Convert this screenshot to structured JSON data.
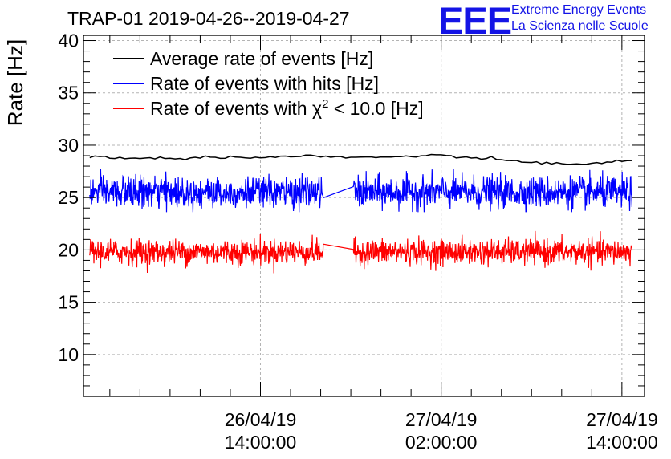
{
  "logo": {
    "acronym": "EEE",
    "line1": "Extreme Energy Events",
    "line2": "La Scienza nelle Scuole",
    "color": "#1414e6"
  },
  "chart_data": {
    "type": "line",
    "title": "TRAP-01 2019-04-26--2019-04-27",
    "ylabel": "Rate [Hz]",
    "xlabel": "",
    "ylim": [
      6,
      40.5
    ],
    "yticks": [
      10,
      15,
      20,
      25,
      30,
      35,
      40
    ],
    "x_time_range": [
      "26/04/19 02:15:00",
      "27/04/19 15:30:00"
    ],
    "xticks": [
      {
        "date": "26/04/19",
        "time": "14:00:00",
        "at": "26/04/19 14:00:00"
      },
      {
        "date": "27/04/19",
        "time": "02:00:00",
        "at": "27/04/19 02:00:00"
      },
      {
        "date": "27/04/19",
        "time": "14:00:00",
        "at": "27/04/19 14:00:00"
      }
    ],
    "grid": true,
    "legend_position": "top-left",
    "data_range": {
      "start": "26/04/19 02:40:00",
      "end": "27/04/19 14:40:00"
    },
    "gap": {
      "start": "26/04/19 18:10:00",
      "end": "26/04/19 20:10:00"
    },
    "series": [
      {
        "name": "Average rate of events [Hz]",
        "color": "#000000",
        "kind": "smooth",
        "times": [
          "26/04/19 02:40:00",
          "26/04/19 05:00:00",
          "26/04/19 08:00:00",
          "26/04/19 11:00:00",
          "26/04/19 14:00:00",
          "26/04/19 17:00:00",
          "26/04/19 20:00:00",
          "26/04/19 23:00:00",
          "27/04/19 02:00:00",
          "27/04/19 05:00:00",
          "27/04/19 08:00:00",
          "27/04/19 11:00:00",
          "27/04/19 14:40:00"
        ],
        "values": [
          28.9,
          28.8,
          28.7,
          28.9,
          28.8,
          29.0,
          28.8,
          28.9,
          29.0,
          28.7,
          28.4,
          28.1,
          28.6
        ]
      },
      {
        "name": "Rate of events with hits [Hz]",
        "color": "#0000ff",
        "kind": "noisy",
        "mean": 25.5,
        "std": 0.75,
        "min": 23.6,
        "max": 28.1
      },
      {
        "name": "Rate of events with χ² < 10.0 [Hz]",
        "color": "#ff0000",
        "kind": "noisy",
        "mean": 19.8,
        "std": 0.6,
        "min": 17.7,
        "max": 21.8
      }
    ],
    "legend": {
      "entries": [
        {
          "label": "Average rate of events [Hz]",
          "color": "#000000"
        },
        {
          "label": "Rate of events with hits [Hz]",
          "color": "#0000ff"
        },
        {
          "label_prefix": "Rate of events with ",
          "symbol": "χ",
          "superscript": "2",
          "label_suffix": " < 10.0 [Hz]",
          "color": "#ff0000"
        }
      ]
    }
  }
}
